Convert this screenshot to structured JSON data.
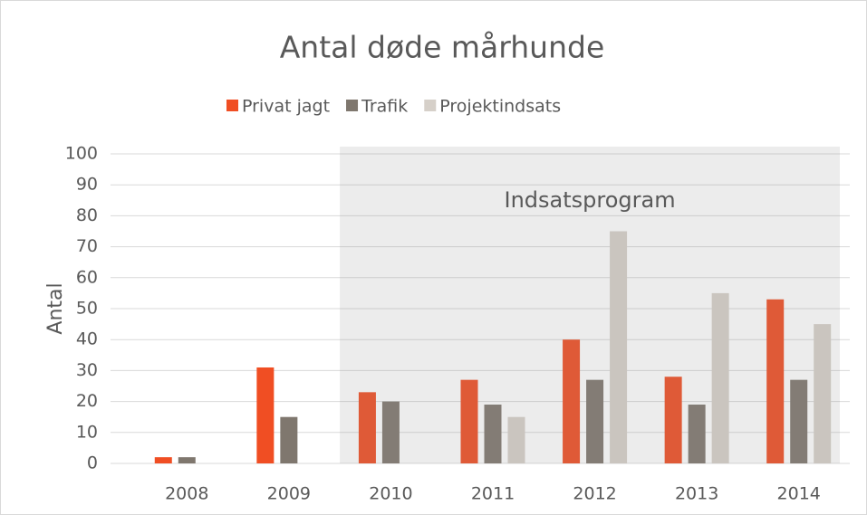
{
  "chart_data": {
    "type": "bar",
    "title": "Antal døde mårhunde",
    "y_label": "Antal",
    "categories": [
      "2008",
      "2009",
      "2010",
      "2011",
      "2012",
      "2013",
      "2014"
    ],
    "series": [
      {
        "name": "Privat jagt",
        "color": "#f04e23",
        "values": [
          2,
          31,
          23,
          27,
          40,
          28,
          53
        ]
      },
      {
        "name": "Trafik",
        "color": "#7f776e",
        "values": [
          2,
          15,
          20,
          19,
          27,
          19,
          27
        ]
      },
      {
        "name": "Projektindsats",
        "color": "#d6d0c9",
        "values": [
          0,
          0,
          0,
          15,
          75,
          55,
          45
        ]
      }
    ],
    "ylim": [
      0,
      100
    ],
    "yticks": [
      0,
      10,
      20,
      30,
      40,
      50,
      60,
      70,
      80,
      90,
      100
    ],
    "grid": true,
    "legend": "top",
    "shaded_region": {
      "from": "2010",
      "to": "2014",
      "label": "Indsatsprogram"
    }
  }
}
